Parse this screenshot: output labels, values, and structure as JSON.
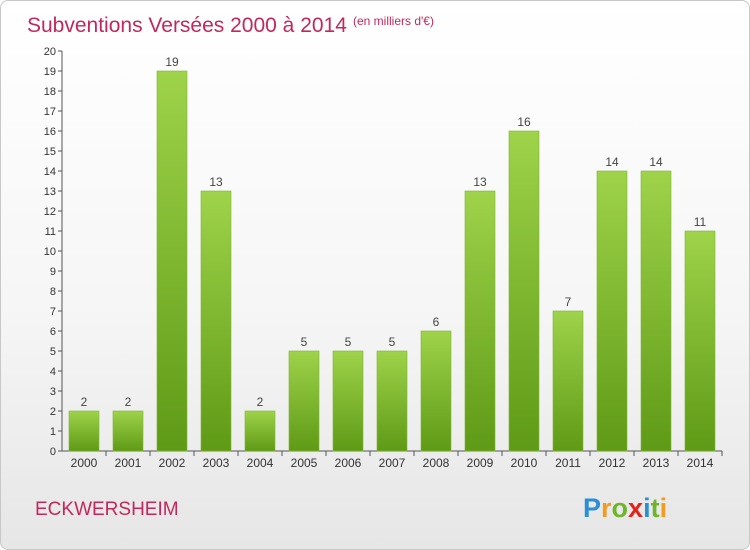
{
  "title": "Subventions Versées 2000 à 2014",
  "unit": "(en milliers d'€)",
  "commune": "ECKWERSHEIM",
  "logo": {
    "letters": [
      "P",
      "r",
      "o",
      "x",
      "i",
      "t",
      "i"
    ],
    "colors": [
      "#2b8fd6",
      "#f39b1f",
      "#6fb52c",
      "#e2231a",
      "#2b8fd6",
      "#6fb52c",
      "#f39b1f"
    ]
  },
  "colors": {
    "bar_top": "#9ed34a",
    "bar_bottom": "#5f9a16",
    "accent": "#c2285e"
  },
  "chart_data": {
    "type": "bar",
    "categories": [
      "2000",
      "2001",
      "2002",
      "2003",
      "2004",
      "2005",
      "2006",
      "2007",
      "2008",
      "2009",
      "2010",
      "2011",
      "2012",
      "2013",
      "2014"
    ],
    "values": [
      2,
      2,
      19,
      13,
      2,
      5,
      5,
      5,
      6,
      13,
      16,
      7,
      14,
      14,
      11
    ],
    "ylim": [
      0,
      20
    ],
    "yticks": [
      "0",
      "1",
      "2",
      "3",
      "4",
      "5",
      "6",
      "7",
      "8",
      "9",
      "10",
      "11",
      "12",
      "13",
      "14",
      "15",
      "16",
      "17",
      "18",
      "19",
      "20"
    ],
    "xlabel": "",
    "ylabel": "",
    "grid": false
  }
}
